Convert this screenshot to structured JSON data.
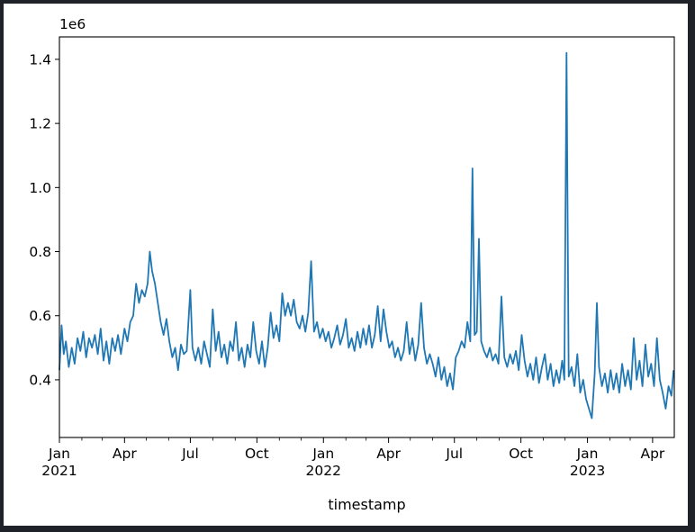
{
  "chart_data": {
    "type": "line",
    "title": "",
    "xlabel": "timestamp",
    "ylabel": "",
    "offset_text": "1e6",
    "grid": false,
    "legend": "none",
    "line_color": "#1f77b4",
    "x_axis": {
      "range": [
        "2021-01-01",
        "2023-05-01"
      ],
      "major_ticks": [
        {
          "date": "2021-01-01",
          "label": "Jan",
          "sub": "2021"
        },
        {
          "date": "2021-04-01",
          "label": "Apr",
          "sub": ""
        },
        {
          "date": "2021-07-01",
          "label": "Jul",
          "sub": ""
        },
        {
          "date": "2021-10-01",
          "label": "Oct",
          "sub": ""
        },
        {
          "date": "2022-01-01",
          "label": "Jan",
          "sub": "2022"
        },
        {
          "date": "2022-04-01",
          "label": "Apr",
          "sub": ""
        },
        {
          "date": "2022-07-01",
          "label": "Jul",
          "sub": ""
        },
        {
          "date": "2022-10-01",
          "label": "Oct",
          "sub": ""
        },
        {
          "date": "2023-01-01",
          "label": "Jan",
          "sub": "2023"
        },
        {
          "date": "2023-04-01",
          "label": "Apr",
          "sub": ""
        }
      ],
      "minor_ticks": [
        "2021-02-01",
        "2021-03-01",
        "2021-05-01",
        "2021-06-01",
        "2021-08-01",
        "2021-09-01",
        "2021-11-01",
        "2021-12-01",
        "2022-02-01",
        "2022-03-01",
        "2022-05-01",
        "2022-06-01",
        "2022-08-01",
        "2022-09-01",
        "2022-11-01",
        "2022-12-01",
        "2023-02-01",
        "2023-03-01"
      ]
    },
    "y_axis": {
      "range": [
        0.22,
        1.47
      ],
      "ticks": [
        {
          "value": 0.4,
          "label": "0.4"
        },
        {
          "value": 0.6,
          "label": "0.6"
        },
        {
          "value": 0.8,
          "label": "0.8"
        },
        {
          "value": 1.0,
          "label": "1.0"
        },
        {
          "value": 1.2,
          "label": "1.2"
        },
        {
          "value": 1.4,
          "label": "1.4"
        }
      ]
    },
    "series": [
      {
        "points": [
          [
            "2021-01-01",
            0.43
          ],
          [
            "2021-01-04",
            0.57
          ],
          [
            "2021-01-07",
            0.48
          ],
          [
            "2021-01-10",
            0.52
          ],
          [
            "2021-01-14",
            0.44
          ],
          [
            "2021-01-18",
            0.5
          ],
          [
            "2021-01-22",
            0.45
          ],
          [
            "2021-01-26",
            0.53
          ],
          [
            "2021-01-30",
            0.49
          ],
          [
            "2021-02-03",
            0.55
          ],
          [
            "2021-02-07",
            0.47
          ],
          [
            "2021-02-11",
            0.53
          ],
          [
            "2021-02-15",
            0.5
          ],
          [
            "2021-02-19",
            0.54
          ],
          [
            "2021-02-23",
            0.48
          ],
          [
            "2021-02-27",
            0.56
          ],
          [
            "2021-03-03",
            0.46
          ],
          [
            "2021-03-07",
            0.52
          ],
          [
            "2021-03-11",
            0.45
          ],
          [
            "2021-03-15",
            0.53
          ],
          [
            "2021-03-19",
            0.49
          ],
          [
            "2021-03-23",
            0.54
          ],
          [
            "2021-03-27",
            0.48
          ],
          [
            "2021-04-01",
            0.56
          ],
          [
            "2021-04-05",
            0.52
          ],
          [
            "2021-04-09",
            0.58
          ],
          [
            "2021-04-13",
            0.6
          ],
          [
            "2021-04-17",
            0.7
          ],
          [
            "2021-04-21",
            0.64
          ],
          [
            "2021-04-25",
            0.68
          ],
          [
            "2021-04-29",
            0.66
          ],
          [
            "2021-05-03",
            0.7
          ],
          [
            "2021-05-06",
            0.8
          ],
          [
            "2021-05-09",
            0.74
          ],
          [
            "2021-05-13",
            0.7
          ],
          [
            "2021-05-17",
            0.64
          ],
          [
            "2021-05-21",
            0.58
          ],
          [
            "2021-05-25",
            0.54
          ],
          [
            "2021-05-29",
            0.59
          ],
          [
            "2021-06-02",
            0.52
          ],
          [
            "2021-06-06",
            0.47
          ],
          [
            "2021-06-10",
            0.5
          ],
          [
            "2021-06-14",
            0.43
          ],
          [
            "2021-06-18",
            0.51
          ],
          [
            "2021-06-22",
            0.48
          ],
          [
            "2021-06-26",
            0.49
          ],
          [
            "2021-07-01",
            0.68
          ],
          [
            "2021-07-04",
            0.5
          ],
          [
            "2021-07-08",
            0.46
          ],
          [
            "2021-07-12",
            0.5
          ],
          [
            "2021-07-16",
            0.45
          ],
          [
            "2021-07-20",
            0.52
          ],
          [
            "2021-07-24",
            0.48
          ],
          [
            "2021-07-28",
            0.44
          ],
          [
            "2021-08-01",
            0.62
          ],
          [
            "2021-08-05",
            0.49
          ],
          [
            "2021-08-09",
            0.55
          ],
          [
            "2021-08-13",
            0.47
          ],
          [
            "2021-08-17",
            0.51
          ],
          [
            "2021-08-21",
            0.45
          ],
          [
            "2021-08-25",
            0.52
          ],
          [
            "2021-08-29",
            0.49
          ],
          [
            "2021-09-02",
            0.58
          ],
          [
            "2021-09-06",
            0.46
          ],
          [
            "2021-09-10",
            0.5
          ],
          [
            "2021-09-14",
            0.44
          ],
          [
            "2021-09-18",
            0.51
          ],
          [
            "2021-09-22",
            0.47
          ],
          [
            "2021-09-26",
            0.58
          ],
          [
            "2021-09-30",
            0.49
          ],
          [
            "2021-10-04",
            0.45
          ],
          [
            "2021-10-08",
            0.52
          ],
          [
            "2021-10-12",
            0.44
          ],
          [
            "2021-10-16",
            0.5
          ],
          [
            "2021-10-20",
            0.61
          ],
          [
            "2021-10-24",
            0.53
          ],
          [
            "2021-10-28",
            0.57
          ],
          [
            "2021-11-01",
            0.52
          ],
          [
            "2021-11-05",
            0.67
          ],
          [
            "2021-11-09",
            0.6
          ],
          [
            "2021-11-13",
            0.64
          ],
          [
            "2021-11-17",
            0.6
          ],
          [
            "2021-11-21",
            0.65
          ],
          [
            "2021-11-25",
            0.58
          ],
          [
            "2021-11-29",
            0.56
          ],
          [
            "2021-12-03",
            0.6
          ],
          [
            "2021-12-07",
            0.55
          ],
          [
            "2021-12-11",
            0.61
          ],
          [
            "2021-12-15",
            0.77
          ],
          [
            "2021-12-19",
            0.55
          ],
          [
            "2021-12-23",
            0.58
          ],
          [
            "2021-12-27",
            0.53
          ],
          [
            "2021-12-31",
            0.56
          ],
          [
            "2022-01-04",
            0.52
          ],
          [
            "2022-01-08",
            0.55
          ],
          [
            "2022-01-12",
            0.5
          ],
          [
            "2022-01-16",
            0.53
          ],
          [
            "2022-01-20",
            0.57
          ],
          [
            "2022-01-24",
            0.51
          ],
          [
            "2022-01-28",
            0.54
          ],
          [
            "2022-02-01",
            0.59
          ],
          [
            "2022-02-05",
            0.5
          ],
          [
            "2022-02-09",
            0.53
          ],
          [
            "2022-02-13",
            0.49
          ],
          [
            "2022-02-17",
            0.55
          ],
          [
            "2022-02-21",
            0.5
          ],
          [
            "2022-02-25",
            0.56
          ],
          [
            "2022-03-01",
            0.51
          ],
          [
            "2022-03-05",
            0.57
          ],
          [
            "2022-03-09",
            0.5
          ],
          [
            "2022-03-13",
            0.54
          ],
          [
            "2022-03-17",
            0.63
          ],
          [
            "2022-03-21",
            0.52
          ],
          [
            "2022-03-25",
            0.62
          ],
          [
            "2022-03-29",
            0.55
          ],
          [
            "2022-04-02",
            0.5
          ],
          [
            "2022-04-06",
            0.52
          ],
          [
            "2022-04-10",
            0.47
          ],
          [
            "2022-04-14",
            0.5
          ],
          [
            "2022-04-18",
            0.46
          ],
          [
            "2022-04-22",
            0.49
          ],
          [
            "2022-04-26",
            0.58
          ],
          [
            "2022-04-30",
            0.48
          ],
          [
            "2022-05-04",
            0.53
          ],
          [
            "2022-05-08",
            0.46
          ],
          [
            "2022-05-12",
            0.51
          ],
          [
            "2022-05-16",
            0.64
          ],
          [
            "2022-05-20",
            0.5
          ],
          [
            "2022-05-24",
            0.45
          ],
          [
            "2022-05-28",
            0.48
          ],
          [
            "2022-06-01",
            0.45
          ],
          [
            "2022-06-05",
            0.41
          ],
          [
            "2022-06-09",
            0.47
          ],
          [
            "2022-06-13",
            0.4
          ],
          [
            "2022-06-17",
            0.44
          ],
          [
            "2022-06-21",
            0.38
          ],
          [
            "2022-06-25",
            0.42
          ],
          [
            "2022-06-29",
            0.37
          ],
          [
            "2022-07-03",
            0.47
          ],
          [
            "2022-07-07",
            0.49
          ],
          [
            "2022-07-11",
            0.52
          ],
          [
            "2022-07-15",
            0.5
          ],
          [
            "2022-07-19",
            0.58
          ],
          [
            "2022-07-23",
            0.52
          ],
          [
            "2022-07-26",
            1.06
          ],
          [
            "2022-07-29",
            0.54
          ],
          [
            "2022-08-01",
            0.55
          ],
          [
            "2022-08-04",
            0.84
          ],
          [
            "2022-08-07",
            0.52
          ],
          [
            "2022-08-11",
            0.49
          ],
          [
            "2022-08-15",
            0.47
          ],
          [
            "2022-08-19",
            0.5
          ],
          [
            "2022-08-23",
            0.46
          ],
          [
            "2022-08-27",
            0.48
          ],
          [
            "2022-08-31",
            0.45
          ],
          [
            "2022-09-04",
            0.66
          ],
          [
            "2022-09-08",
            0.47
          ],
          [
            "2022-09-12",
            0.44
          ],
          [
            "2022-09-16",
            0.48
          ],
          [
            "2022-09-20",
            0.45
          ],
          [
            "2022-09-24",
            0.49
          ],
          [
            "2022-09-28",
            0.43
          ],
          [
            "2022-10-02",
            0.54
          ],
          [
            "2022-10-06",
            0.46
          ],
          [
            "2022-10-10",
            0.41
          ],
          [
            "2022-10-14",
            0.45
          ],
          [
            "2022-10-18",
            0.4
          ],
          [
            "2022-10-22",
            0.47
          ],
          [
            "2022-10-26",
            0.39
          ],
          [
            "2022-10-30",
            0.44
          ],
          [
            "2022-11-03",
            0.48
          ],
          [
            "2022-11-07",
            0.4
          ],
          [
            "2022-11-11",
            0.45
          ],
          [
            "2022-11-15",
            0.38
          ],
          [
            "2022-11-19",
            0.43
          ],
          [
            "2022-11-23",
            0.39
          ],
          [
            "2022-11-27",
            0.46
          ],
          [
            "2022-11-30",
            0.4
          ],
          [
            "2022-12-03",
            1.42
          ],
          [
            "2022-12-06",
            0.41
          ],
          [
            "2022-12-10",
            0.44
          ],
          [
            "2022-12-14",
            0.38
          ],
          [
            "2022-12-18",
            0.48
          ],
          [
            "2022-12-22",
            0.36
          ],
          [
            "2022-12-26",
            0.4
          ],
          [
            "2022-12-30",
            0.34
          ],
          [
            "2023-01-03",
            0.31
          ],
          [
            "2023-01-07",
            0.28
          ],
          [
            "2023-01-11",
            0.42
          ],
          [
            "2023-01-14",
            0.64
          ],
          [
            "2023-01-17",
            0.44
          ],
          [
            "2023-01-21",
            0.38
          ],
          [
            "2023-01-25",
            0.42
          ],
          [
            "2023-01-29",
            0.36
          ],
          [
            "2023-02-02",
            0.43
          ],
          [
            "2023-02-06",
            0.37
          ],
          [
            "2023-02-10",
            0.42
          ],
          [
            "2023-02-14",
            0.36
          ],
          [
            "2023-02-18",
            0.45
          ],
          [
            "2023-02-22",
            0.38
          ],
          [
            "2023-02-26",
            0.43
          ],
          [
            "2023-03-02",
            0.37
          ],
          [
            "2023-03-06",
            0.53
          ],
          [
            "2023-03-10",
            0.4
          ],
          [
            "2023-03-14",
            0.46
          ],
          [
            "2023-03-18",
            0.38
          ],
          [
            "2023-03-22",
            0.51
          ],
          [
            "2023-03-26",
            0.41
          ],
          [
            "2023-03-30",
            0.45
          ],
          [
            "2023-04-03",
            0.38
          ],
          [
            "2023-04-07",
            0.53
          ],
          [
            "2023-04-11",
            0.4
          ],
          [
            "2023-04-15",
            0.36
          ],
          [
            "2023-04-19",
            0.31
          ],
          [
            "2023-04-23",
            0.38
          ],
          [
            "2023-04-27",
            0.35
          ],
          [
            "2023-04-30",
            0.43
          ]
        ]
      }
    ]
  }
}
